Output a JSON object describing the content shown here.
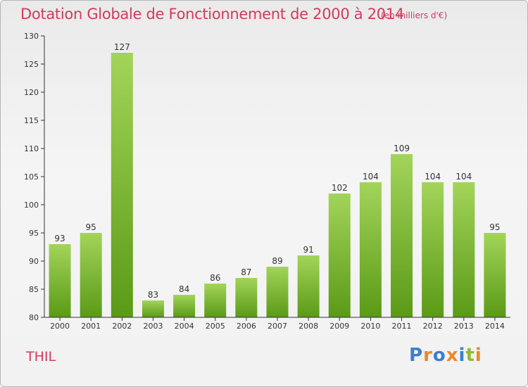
{
  "header": {
    "title": "Dotation Globale de Fonctionnement de 2000 à 2014",
    "unit": "(en milliers d'€)"
  },
  "footer": {
    "commune": "THIL",
    "logo_text": "Proxiti",
    "logo_colors": [
      "#3a7fd0",
      "#e8892c",
      "#3a7fd0",
      "#e8892c",
      "#3a7fd0",
      "#8dbd2c",
      "#e8892c"
    ]
  },
  "colors": {
    "accent": "#d23a5c",
    "bar_light": "#a3d45a",
    "bar_dark": "#5a9a16",
    "axis": "#333333"
  },
  "chart_data": {
    "type": "bar",
    "title": "Dotation Globale de Fonctionnement de 2000 à 2014",
    "subtitle": "(en milliers d'€)",
    "xlabel": "",
    "ylabel": "",
    "ylim": [
      80,
      130
    ],
    "yticks": [
      80,
      85,
      90,
      95,
      100,
      105,
      110,
      115,
      120,
      125,
      130
    ],
    "grid": false,
    "categories": [
      "2000",
      "2001",
      "2002",
      "2003",
      "2004",
      "2005",
      "2006",
      "2007",
      "2008",
      "2009",
      "2010",
      "2011",
      "2012",
      "2013",
      "2014"
    ],
    "values": [
      93,
      95,
      127,
      83,
      84,
      86,
      87,
      89,
      91,
      102,
      104,
      109,
      104,
      104,
      95
    ]
  }
}
